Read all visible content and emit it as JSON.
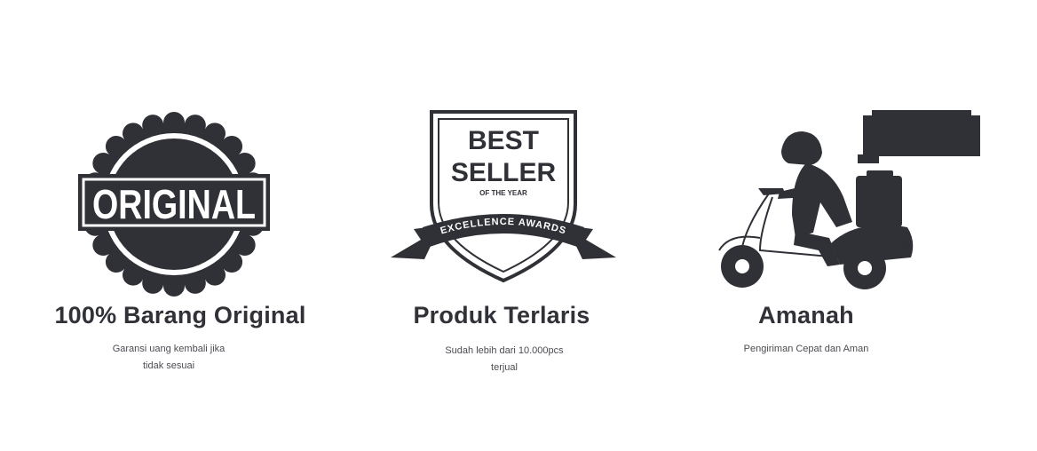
{
  "features": [
    {
      "icon": "original-seal-icon",
      "badge_text": "ORIGINAL",
      "title": "100% Barang Original",
      "desc_line1": "Garansi uang kembali jika",
      "desc_line2": "tidak sesuai"
    },
    {
      "icon": "best-seller-shield-icon",
      "badge_line1": "BEST",
      "badge_line2": "SELLER",
      "badge_line3": "OF THE YEAR",
      "ribbon_text": "EXCELLENCE AWARDS",
      "title": "Produk Terlaris",
      "desc_line1": "Sudah lebih dari 10.000pcs",
      "desc_line2": "terjual"
    },
    {
      "icon": "delivery-scooter-icon",
      "title": "Amanah",
      "desc_line1": "Pengiriman Cepat dan Aman"
    }
  ],
  "colors": {
    "icon": "#2f3137",
    "text": "#303238"
  }
}
